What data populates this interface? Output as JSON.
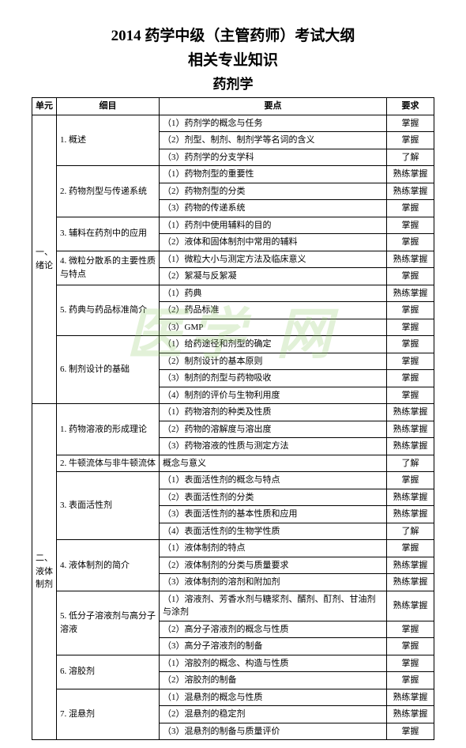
{
  "title1": "2014 药学中级（主管药师）考试大纲",
  "title2": "相关专业知识",
  "title3": "药剂学",
  "watermark_text": "医学  网",
  "headers": {
    "unit": "单元",
    "subject": "细目",
    "point": "要点",
    "req": "要求"
  },
  "units": [
    {
      "name": "一、绪论",
      "subjects": [
        {
          "name": "1. 概述",
          "points": [
            {
              "t": "（1）药剂学的概念与任务",
              "r": "掌握"
            },
            {
              "t": "（2）剂型、制剂、制剂学等名词的含义",
              "r": "掌握"
            },
            {
              "t": "（3）药剂学的分支学科",
              "r": "了解"
            }
          ]
        },
        {
          "name": "2. 药物剂型与传递系统",
          "points": [
            {
              "t": "（1）药物剂型的重要性",
              "r": "熟练掌握"
            },
            {
              "t": "（2）药物剂型的分类",
              "r": "熟练掌握"
            },
            {
              "t": "（3）药物的传递系统",
              "r": "掌握"
            }
          ]
        },
        {
          "name": "3. 辅料在药剂中的应用",
          "points": [
            {
              "t": "（1）药剂中使用辅料的目的",
              "r": "掌握"
            },
            {
              "t": "（2）液体和固体制剂中常用的辅料",
              "r": "掌握"
            }
          ]
        },
        {
          "name": "4. 微粒分散系的主要性质与特点",
          "points": [
            {
              "t": "（1）微粒大小与测定方法及临床意义",
              "r": "熟练掌握"
            },
            {
              "t": "（2）絮凝与反絮凝",
              "r": "掌握"
            }
          ]
        },
        {
          "name": "5. 药典与药品标准简介",
          "points": [
            {
              "t": "（1）药典",
              "r": "熟练掌握"
            },
            {
              "t": "（2）药品标准",
              "r": "掌握"
            },
            {
              "t": "（3）GMP",
              "r": "掌握"
            }
          ]
        },
        {
          "name": "6. 制剂设计的基础",
          "points": [
            {
              "t": "（1）给药途径和剂型的确定",
              "r": "掌握"
            },
            {
              "t": "（2）制剂设计的基本原则",
              "r": "掌握"
            },
            {
              "t": "（3）制剂的剂型与药物吸收",
              "r": "掌握"
            },
            {
              "t": "（4）制剂的评价与生物利用度",
              "r": "掌握"
            }
          ]
        }
      ]
    },
    {
      "name": "二、液体制剂",
      "subjects": [
        {
          "name": "1. 药物溶液的形成理论",
          "points": [
            {
              "t": "（1）药物溶剂的种类及性质",
              "r": "熟练掌握"
            },
            {
              "t": "（2）药物的溶解度与溶出度",
              "r": "熟练掌握"
            },
            {
              "t": "（3）药物溶液的性质与测定方法",
              "r": "熟练掌握"
            }
          ]
        },
        {
          "name": "2. 牛顿流体与非牛顿流体",
          "points": [
            {
              "t": "概念与意义",
              "r": "了解"
            }
          ]
        },
        {
          "name": "3. 表面活性剂",
          "points": [
            {
              "t": "（1）表面活性剂的概念与特点",
              "r": "掌握"
            },
            {
              "t": "（2）表面活性剂的分类",
              "r": "熟练掌握"
            },
            {
              "t": "（3）表面活性剂的基本性质和应用",
              "r": "熟练掌握"
            },
            {
              "t": "（4）表面活性剂的生物学性质",
              "r": "了解"
            }
          ]
        },
        {
          "name": "4. 液体制剂的简介",
          "points": [
            {
              "t": "（1）液体制剂的特点",
              "r": "掌握"
            },
            {
              "t": "（2）液体制剂的分类与质量要求",
              "r": "熟练掌握"
            },
            {
              "t": "（3）液体制剂的溶剂和附加剂",
              "r": "熟练掌握"
            }
          ]
        },
        {
          "name": "5. 低分子溶液剂与高分子溶液",
          "points": [
            {
              "t": "（1）溶液剂、芳香水剂与糖浆剂、醑剂、酊剂、甘油剂与涂剂",
              "r": "熟练掌握"
            },
            {
              "t": "（2）高分子溶液剂的概念与性质",
              "r": "掌握"
            },
            {
              "t": "（3）高分子溶液剂的制备",
              "r": "掌握"
            }
          ]
        },
        {
          "name": "6. 溶胶剂",
          "points": [
            {
              "t": "（1）溶胶剂的概念、构造与性质",
              "r": "掌握"
            },
            {
              "t": "（2）溶胶剂的制备",
              "r": "掌握"
            }
          ]
        },
        {
          "name": "7. 混悬剂",
          "points": [
            {
              "t": "（1）混悬剂的概念与性质",
              "r": "熟练掌握"
            },
            {
              "t": "（2）混悬剂的稳定剂",
              "r": "熟练掌握"
            },
            {
              "t": "（3）混悬剂的制备与质量评价",
              "r": "掌握"
            }
          ]
        }
      ]
    }
  ]
}
